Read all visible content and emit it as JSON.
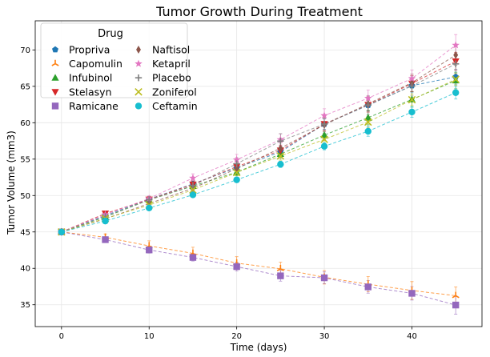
{
  "chart_data": {
    "type": "line",
    "title": "Tumor Growth During Treatment",
    "xlabel": "Time (days)",
    "ylabel": "Tumor Volume (mm3)",
    "xlim": [
      -3,
      48
    ],
    "ylim": [
      32,
      74
    ],
    "xticks": [
      0,
      10,
      20,
      30,
      40
    ],
    "yticks": [
      35,
      40,
      45,
      50,
      55,
      60,
      65,
      70
    ],
    "grid": true,
    "legend": {
      "title": "Drug",
      "position": "top-left",
      "columns": 2
    },
    "x": [
      0,
      5,
      10,
      15,
      20,
      25,
      30,
      35,
      40,
      45
    ],
    "series": [
      {
        "name": "Propriva",
        "color": "#1f77b4",
        "marker": "pentagon",
        "values": [
          45.0,
          47.25,
          49.5,
          51.6,
          53.8,
          56.0,
          59.8,
          62.4,
          65.1,
          66.3
        ],
        "errors": [
          0,
          0.2,
          0.3,
          0.4,
          0.5,
          0.6,
          0.7,
          0.8,
          0.9,
          1.0
        ]
      },
      {
        "name": "Capomulin",
        "color": "#ff7f0e",
        "marker": "tri-up",
        "values": [
          45.0,
          44.27,
          43.08,
          42.06,
          40.72,
          39.94,
          38.77,
          37.82,
          36.96,
          36.24
        ],
        "errors": [
          0,
          0.45,
          0.7,
          0.84,
          0.88,
          0.91,
          0.93,
          1.05,
          1.22,
          1.22
        ]
      },
      {
        "name": "Infubinol",
        "color": "#2ca02c",
        "marker": "triangle-up",
        "values": [
          45.0,
          47.06,
          49.4,
          51.3,
          53.2,
          55.7,
          58.3,
          60.7,
          63.2,
          65.8
        ],
        "errors": [
          0,
          0.24,
          0.28,
          0.36,
          0.5,
          0.55,
          0.65,
          0.98,
          1.06,
          1.14
        ]
      },
      {
        "name": "Stelasyn",
        "color": "#d62728",
        "marker": "triangle-down",
        "values": [
          45.0,
          47.53,
          49.46,
          51.53,
          53.97,
          56.19,
          59.83,
          62.46,
          65.39,
          68.44
        ],
        "errors": [
          0,
          0.24,
          0.43,
          0.49,
          0.62,
          0.74,
          0.9,
          1.0,
          1.1,
          1.2
        ]
      },
      {
        "name": "Ramicane",
        "color": "#9467bd",
        "marker": "square",
        "values": [
          45.0,
          43.94,
          42.53,
          41.5,
          40.24,
          38.97,
          38.7,
          37.45,
          36.57,
          34.96
        ],
        "errors": [
          0,
          0.32,
          0.44,
          0.5,
          0.6,
          0.73,
          0.8,
          0.86,
          0.93,
          1.25
        ]
      },
      {
        "name": "Naftisol",
        "color": "#8c564b",
        "marker": "diamond",
        "values": [
          45.0,
          46.8,
          48.9,
          51.0,
          53.7,
          56.5,
          59.7,
          62.6,
          65.5,
          69.3
        ],
        "errors": [
          0,
          0.2,
          0.4,
          0.5,
          0.6,
          0.8,
          0.9,
          1.0,
          1.2,
          1.4
        ]
      },
      {
        "name": "Ketapril",
        "color": "#e377c2",
        "marker": "star",
        "values": [
          45.0,
          47.39,
          49.58,
          52.4,
          54.92,
          57.68,
          60.99,
          63.37,
          66.07,
          70.66
        ],
        "errors": [
          0,
          0.26,
          0.36,
          0.58,
          0.73,
          0.76,
          0.93,
          1.13,
          1.16,
          1.45
        ]
      },
      {
        "name": "Placebo",
        "color": "#7f7f7f",
        "marker": "plus",
        "values": [
          45.0,
          47.13,
          49.42,
          51.36,
          54.36,
          57.48,
          59.81,
          62.42,
          65.05,
          68.08
        ],
        "errors": [
          0,
          0.22,
          0.4,
          0.61,
          0.84,
          1.03,
          1.22,
          1.29,
          1.37,
          1.35
        ]
      },
      {
        "name": "Zoniferol",
        "color": "#bcbd22",
        "marker": "x",
        "values": [
          45.0,
          46.85,
          48.69,
          50.78,
          53.17,
          55.43,
          57.71,
          60.09,
          63.16,
          65.96
        ],
        "errors": [
          0,
          0.19,
          0.26,
          0.36,
          0.44,
          0.57,
          0.63,
          0.77,
          0.79,
          0.81
        ]
      },
      {
        "name": "Ceftamin",
        "color": "#17becf",
        "marker": "circle",
        "values": [
          45.0,
          46.5,
          48.29,
          50.09,
          52.16,
          54.29,
          56.77,
          58.83,
          61.47,
          64.13
        ],
        "errors": [
          0,
          0.16,
          0.24,
          0.33,
          0.36,
          0.44,
          0.49,
          0.69,
          0.71,
          0.88
        ]
      }
    ]
  }
}
